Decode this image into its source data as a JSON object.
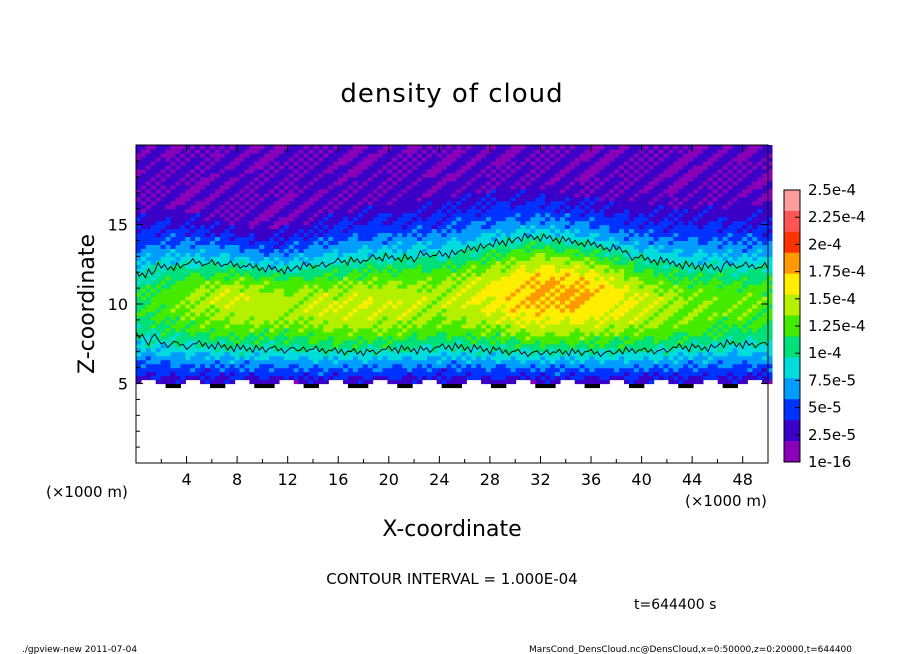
{
  "chart_data": {
    "type": "heatmap",
    "title": "density of cloud",
    "xlabel": "X-coordinate",
    "ylabel": "Z-coordinate",
    "x_unit": "(×1000 m)",
    "y_unit": "(×1000 m)",
    "xlim": [
      0,
      50
    ],
    "ylim": [
      0,
      20
    ],
    "x_ticks": [
      "4",
      "8",
      "12",
      "16",
      "20",
      "24",
      "28",
      "32",
      "36",
      "40",
      "44",
      "48"
    ],
    "y_ticks": [
      "5",
      "10",
      "15"
    ],
    "colorbar": {
      "labels": [
        "2.5e-4",
        "2.25e-4",
        "2e-4",
        "1.75e-4",
        "1.5e-4",
        "1.25e-4",
        "1e-4",
        "7.5e-5",
        "5e-5",
        "2.5e-5",
        "1e-16"
      ],
      "colors": [
        "#ff9c9c",
        "#ff5454",
        "#ff3300",
        "#ff9900",
        "#ffee00",
        "#b4f000",
        "#44ea00",
        "#00e07a",
        "#00dcdc",
        "#009cff",
        "#0032ff",
        "#3a00c8",
        "#8a00b8"
      ]
    },
    "profile_note_values": {
      "peak_density": 0.00022,
      "contour_level": 0.0001
    },
    "series": [
      {
        "name": "",
        "x": [
          0,
          4,
          8,
          12,
          16,
          20,
          24,
          28,
          32,
          36,
          40,
          44,
          48,
          50
        ],
        "y_peak": [
          10,
          10.2,
          10.4,
          10.0,
          9.8,
          10.0,
          10.2,
          10.5,
          10.8,
          10.6,
          10.0,
          9.8,
          10.0,
          10.0
        ],
        "peak_value": [
          0.00012,
          0.00015,
          0.00017,
          0.00016,
          0.00017,
          0.00017,
          0.00016,
          0.00018,
          0.00021,
          0.0002,
          0.00017,
          0.00015,
          0.00014,
          0.00014
        ]
      }
    ],
    "annotations": {
      "contour_interval": "CONTOUR INTERVAL = 1.000E-04",
      "time": "t=644400 s"
    }
  },
  "footer": {
    "left": "./gpview-new  2011-07-04",
    "right": "MarsCond_DensCloud.nc@DensCloud,x=0:50000,z=0:20000,t=644400"
  }
}
